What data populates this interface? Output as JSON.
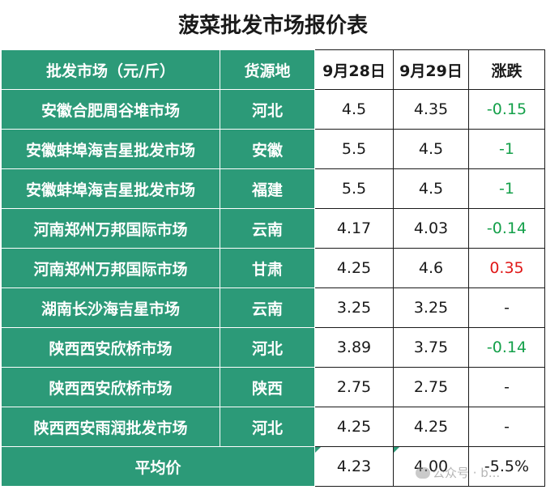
{
  "title": "菠菜批发市场报价表",
  "headers": [
    "批发市场（元/斤）",
    "货源地",
    "9月28日",
    "9月29日",
    "涨跌"
  ],
  "rows": [
    {
      "market": "安徽合肥周谷堆市场",
      "origin": "河北",
      "d28": "4.5",
      "d29": "4.35",
      "change": "-0.15",
      "dir": "neg"
    },
    {
      "market": "安徽蚌埠海吉星批发市场",
      "origin": "安徽",
      "d28": "5.5",
      "d29": "4.5",
      "change": "-1",
      "dir": "neg"
    },
    {
      "market": "安徽蚌埠海吉星批发市场",
      "origin": "福建",
      "d28": "5.5",
      "d29": "4.5",
      "change": "-1",
      "dir": "neg"
    },
    {
      "market": "河南郑州万邦国际市场",
      "origin": "云南",
      "d28": "4.17",
      "d29": "4.03",
      "change": "-0.14",
      "dir": "neg"
    },
    {
      "market": "河南郑州万邦国际市场",
      "origin": "甘肃",
      "d28": "4.25",
      "d29": "4.6",
      "change": "0.35",
      "dir": "pos"
    },
    {
      "market": "湖南长沙海吉星市场",
      "origin": "云南",
      "d28": "3.25",
      "d29": "3.25",
      "change": "-",
      "dir": "none"
    },
    {
      "market": "陕西西安欣桥市场",
      "origin": "河北",
      "d28": "3.89",
      "d29": "3.75",
      "change": "-0.14",
      "dir": "neg"
    },
    {
      "market": "陕西西安欣桥市场",
      "origin": "陕西",
      "d28": "2.75",
      "d29": "2.75",
      "change": "-",
      "dir": "none"
    },
    {
      "market": "陕西西安雨润批发市场",
      "origin": "河北",
      "d28": "4.25",
      "d29": "4.25",
      "change": "-",
      "dir": "none"
    }
  ],
  "average": {
    "label": "平均价",
    "d28": "4.23",
    "d29": "4.00",
    "change": "-5.5%"
  },
  "watermark": "公众号 · b...",
  "colors": {
    "header_green": "#2c9a78",
    "decrease": "#14a04a",
    "increase": "#e01818"
  }
}
